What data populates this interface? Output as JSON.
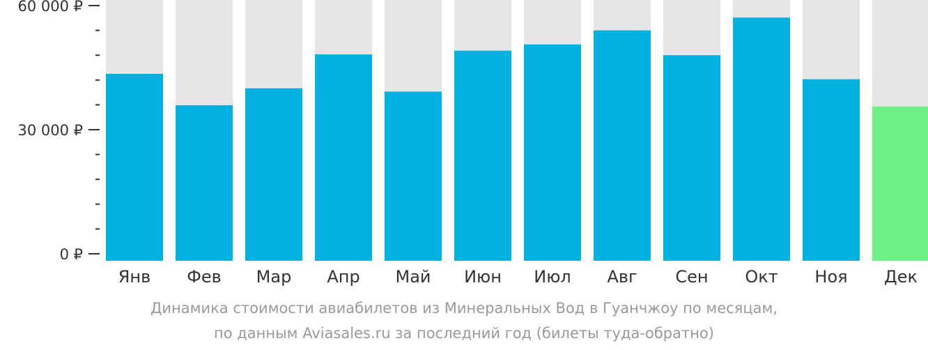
{
  "chart_data": {
    "type": "bar",
    "categories": [
      "Янв",
      "Фев",
      "Мар",
      "Апр",
      "Май",
      "Июн",
      "Июл",
      "Авг",
      "Сен",
      "Окт",
      "Ноя",
      "Дек"
    ],
    "values": [
      43500,
      35900,
      40000,
      48200,
      39200,
      49100,
      50600,
      54000,
      48000,
      57100,
      42200,
      35600
    ],
    "highlight_index": 11,
    "ylim": [
      0,
      63000
    ],
    "y_ticks": [
      {
        "value": 0,
        "label": "0 ₽"
      },
      {
        "value": 30000,
        "label": "30 000 ₽"
      },
      {
        "value": 60000,
        "label": "60 000 ₽"
      }
    ],
    "y_minor_step": 6000,
    "colors": {
      "bar": "#00B0DE",
      "highlight": "#6DF186",
      "background_bar": "#E6E6E6",
      "axis": "#333333"
    },
    "caption_line1": "Динамика стоимости авиабилетов из Минеральных Вод в Гуанчжоу по месяцам,",
    "caption_line2": "по данным Aviasales.ru за последний год (билеты туда-обратно)"
  }
}
